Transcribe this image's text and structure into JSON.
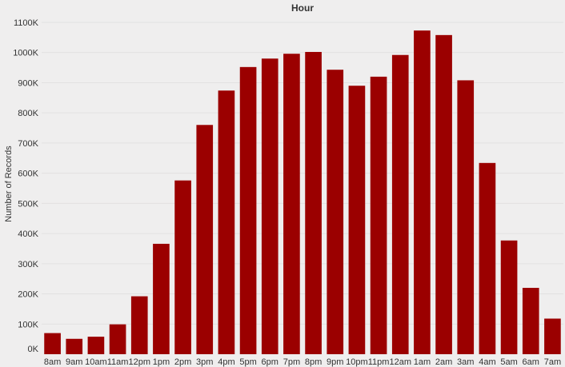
{
  "chart_data": {
    "type": "bar",
    "title": "Hour",
    "xlabel": "",
    "ylabel": "Number of Records",
    "ylim": [
      0,
      1100000
    ],
    "yticks": [
      {
        "value": 0,
        "label": "0K"
      },
      {
        "value": 100000,
        "label": "100K"
      },
      {
        "value": 200000,
        "label": "200K"
      },
      {
        "value": 300000,
        "label": "300K"
      },
      {
        "value": 400000,
        "label": "400K"
      },
      {
        "value": 500000,
        "label": "500K"
      },
      {
        "value": 600000,
        "label": "600K"
      },
      {
        "value": 700000,
        "label": "700K"
      },
      {
        "value": 800000,
        "label": "800K"
      },
      {
        "value": 900000,
        "label": "900K"
      },
      {
        "value": 1000000,
        "label": "1000K"
      },
      {
        "value": 1100000,
        "label": "1100K"
      }
    ],
    "categories": [
      "8am",
      "9am",
      "10am",
      "11am",
      "12pm",
      "1pm",
      "2pm",
      "3pm",
      "4pm",
      "5pm",
      "6pm",
      "7pm",
      "8pm",
      "9pm",
      "10pm",
      "11pm",
      "12am",
      "1am",
      "2am",
      "3am",
      "4am",
      "5am",
      "6am",
      "7am"
    ],
    "values": [
      70000,
      51000,
      58000,
      99000,
      192000,
      366000,
      576000,
      760000,
      874000,
      952000,
      980000,
      996000,
      1002000,
      943000,
      890000,
      920000,
      992000,
      1073000,
      1058000,
      908000,
      634000,
      377000,
      220000,
      118000
    ],
    "bar_color": "#9b0000",
    "background_color": "#efeeee",
    "grid": true,
    "legend": "none"
  }
}
